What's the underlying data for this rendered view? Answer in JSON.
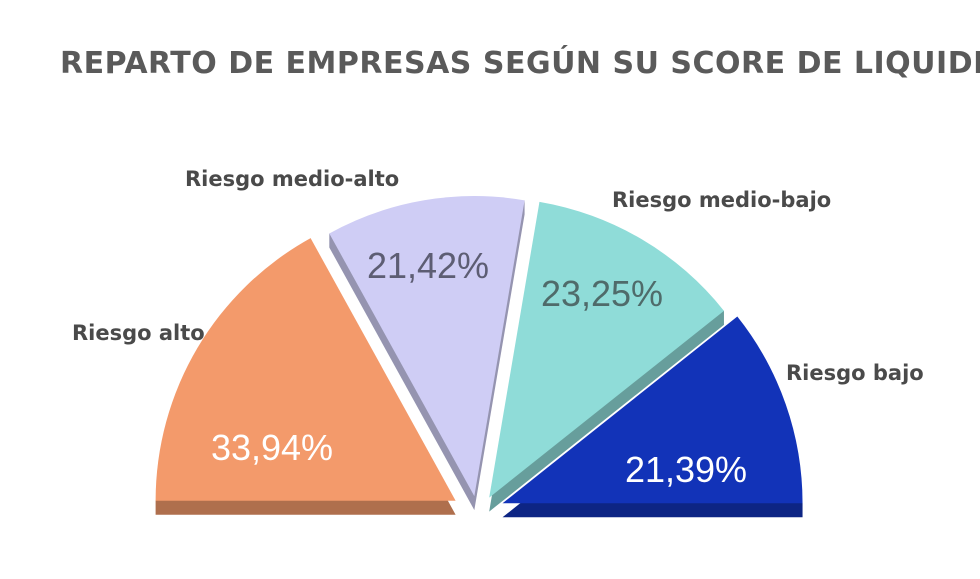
{
  "chart_data": {
    "type": "pie",
    "subtype": "half-pie exploded",
    "title": "REPARTO DE EMPRESAS SEGÚN SU SCORE DE LIQUIDEZ",
    "categories": [
      "Riesgo alto",
      "Riesgo medio-alto",
      "Riesgo medio-bajo",
      "Riesgo bajo"
    ],
    "values": [
      33.94,
      21.42,
      23.25,
      21.39
    ],
    "value_labels": [
      "33,94%",
      "21,42%",
      "23,25%",
      "21,39%"
    ],
    "colors": [
      "#f39a6b",
      "#cfcdf5",
      "#8fdcd8",
      "#1233b8"
    ],
    "value_label_colors": [
      "#ffffff",
      "#5d5d73",
      "#4f6b6a",
      "#ffffff"
    ],
    "legend": "none"
  }
}
